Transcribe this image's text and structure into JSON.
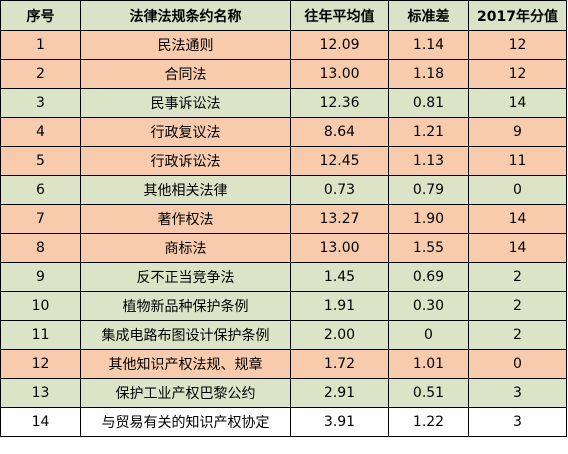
{
  "table": {
    "headers": [
      "序号",
      "法律法规条约名称",
      "往年平均值",
      "标准差",
      "2017年分值"
    ],
    "header_color": "#dae3c8",
    "row_colors": {
      "orange": "#f9cbad",
      "green": "#dbe4c7",
      "white": "#ffffff"
    },
    "rows": [
      {
        "no": "1",
        "name": "民法通则",
        "avg": "12.09",
        "sd": "1.14",
        "score": "12",
        "color": "#f9cbad"
      },
      {
        "no": "2",
        "name": "合同法",
        "avg": "13.00",
        "sd": "1.18",
        "score": "12",
        "color": "#f9cbad"
      },
      {
        "no": "3",
        "name": "民事诉讼法",
        "avg": "12.36",
        "sd": "0.81",
        "score": "14",
        "color": "#dbe4c7"
      },
      {
        "no": "4",
        "name": "行政复议法",
        "avg": "8.64",
        "sd": "1.21",
        "score": "9",
        "color": "#f9cbad"
      },
      {
        "no": "5",
        "name": "行政诉讼法",
        "avg": "12.45",
        "sd": "1.13",
        "score": "11",
        "color": "#f9cbad"
      },
      {
        "no": "6",
        "name": "其他相关法律",
        "avg": "0.73",
        "sd": "0.79",
        "score": "0",
        "color": "#dbe4c7"
      },
      {
        "no": "7",
        "name": "著作权法",
        "avg": "13.27",
        "sd": "1.90",
        "score": "14",
        "color": "#f9cbad"
      },
      {
        "no": "8",
        "name": "商标法",
        "avg": "13.00",
        "sd": "1.55",
        "score": "14",
        "color": "#f9cbad"
      },
      {
        "no": "9",
        "name": "反不正当竞争法",
        "avg": "1.45",
        "sd": "0.69",
        "score": "2",
        "color": "#dbe4c7"
      },
      {
        "no": "10",
        "name": "植物新品种保护条例",
        "avg": "1.91",
        "sd": "0.30",
        "score": "2",
        "color": "#dbe4c7"
      },
      {
        "no": "11",
        "name": "集成电路布图设计保护条例",
        "avg": "2.00",
        "sd": "0",
        "score": "2",
        "color": "#dbe4c7"
      },
      {
        "no": "12",
        "name": "其他知识产权法规、规章",
        "avg": "1.72",
        "sd": "1.01",
        "score": "0",
        "color": "#f9cbad"
      },
      {
        "no": "13",
        "name": "保护工业产权巴黎公约",
        "avg": "2.91",
        "sd": "0.51",
        "score": "3",
        "color": "#dbe4c7"
      },
      {
        "no": "14",
        "name": "与贸易有关的知识产权协定",
        "avg": "3.91",
        "sd": "1.22",
        "score": "3",
        "color": "#ffffff"
      }
    ]
  }
}
